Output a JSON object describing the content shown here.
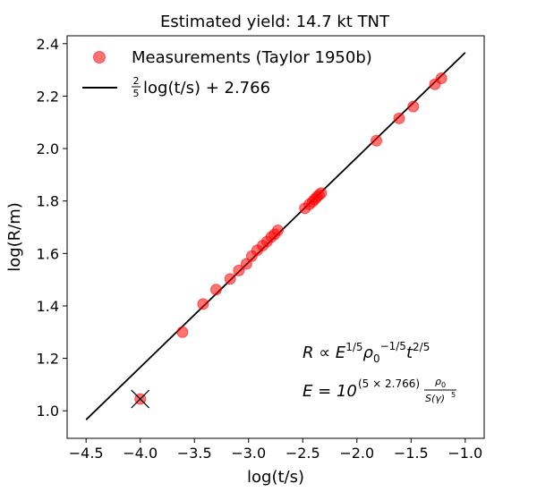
{
  "chart_data": {
    "type": "scatter",
    "title": "Estimated yield: 14.7 kt TNT",
    "xlabel": "log(t/s)",
    "ylabel": "log(R/m)",
    "xlim": [
      -4.675,
      -0.825
    ],
    "ylim": [
      0.895,
      2.43
    ],
    "xticks": [
      -4.5,
      -4.0,
      -3.5,
      -3.0,
      -2.5,
      -2.0,
      -1.5,
      -1.0
    ],
    "xtick_labels": [
      "−4.5",
      "−4.0",
      "−3.5",
      "−3.0",
      "−2.5",
      "−2.0",
      "−1.5",
      "−1.0"
    ],
    "yticks": [
      1.0,
      1.2,
      1.4,
      1.6,
      1.8,
      2.0,
      2.2,
      2.4
    ],
    "ytick_labels": [
      "1.0",
      "1.2",
      "1.4",
      "1.6",
      "1.8",
      "2.0",
      "2.2",
      "2.4"
    ],
    "grid": false,
    "legend_position": "top-left",
    "series": [
      {
        "name": "Measurements (Taylor 1950b)",
        "kind": "scatter",
        "color": "#ff0000",
        "alpha": 0.55,
        "points": [
          [
            -4.0,
            1.045
          ],
          [
            -3.61,
            1.3
          ],
          [
            -3.42,
            1.407
          ],
          [
            -3.3,
            1.462
          ],
          [
            -3.17,
            1.503
          ],
          [
            -3.09,
            1.535
          ],
          [
            -3.02,
            1.56
          ],
          [
            -2.97,
            1.59
          ],
          [
            -2.92,
            1.612
          ],
          [
            -2.87,
            1.63
          ],
          [
            -2.83,
            1.645
          ],
          [
            -2.79,
            1.663
          ],
          [
            -2.76,
            1.673
          ],
          [
            -2.73,
            1.688
          ],
          [
            -2.48,
            1.772
          ],
          [
            -2.44,
            1.787
          ],
          [
            -2.41,
            1.797
          ],
          [
            -2.39,
            1.806
          ],
          [
            -2.37,
            1.815
          ],
          [
            -2.35,
            1.823
          ],
          [
            -2.33,
            1.83
          ],
          [
            -1.82,
            2.03
          ],
          [
            -1.61,
            2.115
          ],
          [
            -1.48,
            2.16
          ],
          [
            -1.28,
            2.245
          ],
          [
            -1.22,
            2.268
          ]
        ]
      },
      {
        "name": "",
        "kind": "line",
        "color": "#000000",
        "points": [
          [
            -4.5,
            0.966
          ],
          [
            -1.0,
            2.366
          ]
        ]
      }
    ],
    "legend": {
      "scatter_label": "Measurements (Taylor 1950b)",
      "line_frac_num": "2",
      "line_frac_den": "5",
      "line_label_rest": "log(t/s) + 2.766"
    },
    "excluded_point": [
      -4.0,
      1.045
    ],
    "annotations": {
      "eq1_parts": [
        "R ∝ E",
        "1/5",
        "ρ",
        "0",
        "−1/5",
        "t",
        "2/5"
      ],
      "eq2_parts": [
        "E = 10",
        "(5 × 2.766)",
        "ρ",
        "0",
        "S(γ)",
        "5"
      ]
    }
  }
}
